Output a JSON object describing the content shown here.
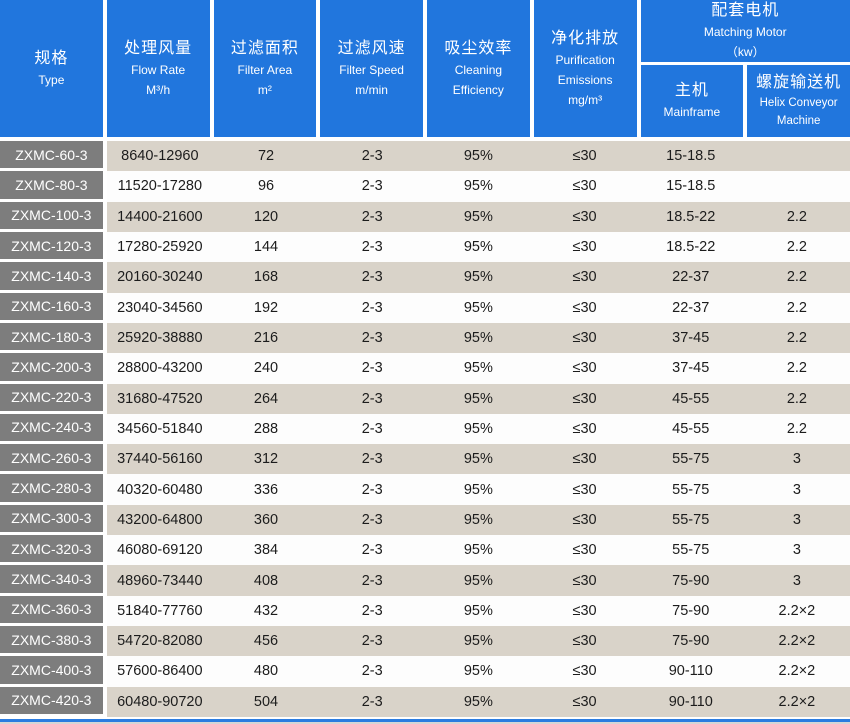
{
  "colors": {
    "header_blue": "#2176dd",
    "row_beige": "#d9d3c9",
    "row_white": "#fdfdfd",
    "type_gray": "#7d7d7d",
    "footer_blue": "#2b7ce0",
    "footer_gray": "#d6d6d6"
  },
  "header": {
    "col_type": {
      "zh": "规格",
      "en": "Type"
    },
    "col_flow": {
      "zh": "处理风量",
      "en": "Flow Rate",
      "unit": "M³/h"
    },
    "col_area": {
      "zh": "过滤面积",
      "en": "Filter Area",
      "unit": "m²"
    },
    "col_speed": {
      "zh": "过滤风速",
      "en": "Filter Speed",
      "unit": "m/min"
    },
    "col_eff": {
      "zh": "吸尘效率",
      "en_line1": "Cleaning",
      "en_line2": "Efficiency"
    },
    "col_emis": {
      "zh": "净化排放",
      "en_line1": "Purification",
      "en_line2": "Emissions",
      "unit": "mg/m³"
    },
    "motor_group": {
      "zh": "配套电机",
      "en": "Matching Motor",
      "unit": "（kw）"
    },
    "col_mainframe": {
      "zh": "主机",
      "en": "Mainframe"
    },
    "col_helix": {
      "zh": "螺旋输送机",
      "en_line1": "Helix Conveyor",
      "en_line2": "Machine"
    }
  },
  "rows": [
    {
      "model": "ZXMC-60-3",
      "flow": "8640-12960",
      "area": "72",
      "speed": "2-3",
      "eff": "95%",
      "emis": "≤30",
      "main": "15-18.5",
      "helix": ""
    },
    {
      "model": "ZXMC-80-3",
      "flow": "11520-17280",
      "area": "96",
      "speed": "2-3",
      "eff": "95%",
      "emis": "≤30",
      "main": "15-18.5",
      "helix": ""
    },
    {
      "model": "ZXMC-100-3",
      "flow": "14400-21600",
      "area": "120",
      "speed": "2-3",
      "eff": "95%",
      "emis": "≤30",
      "main": "18.5-22",
      "helix": "2.2"
    },
    {
      "model": "ZXMC-120-3",
      "flow": "17280-25920",
      "area": "144",
      "speed": "2-3",
      "eff": "95%",
      "emis": "≤30",
      "main": "18.5-22",
      "helix": "2.2"
    },
    {
      "model": "ZXMC-140-3",
      "flow": "20160-30240",
      "area": "168",
      "speed": "2-3",
      "eff": "95%",
      "emis": "≤30",
      "main": "22-37",
      "helix": "2.2"
    },
    {
      "model": "ZXMC-160-3",
      "flow": "23040-34560",
      "area": "192",
      "speed": "2-3",
      "eff": "95%",
      "emis": "≤30",
      "main": "22-37",
      "helix": "2.2"
    },
    {
      "model": "ZXMC-180-3",
      "flow": "25920-38880",
      "area": "216",
      "speed": "2-3",
      "eff": "95%",
      "emis": "≤30",
      "main": "37-45",
      "helix": "2.2"
    },
    {
      "model": "ZXMC-200-3",
      "flow": "28800-43200",
      "area": "240",
      "speed": "2-3",
      "eff": "95%",
      "emis": "≤30",
      "main": "37-45",
      "helix": "2.2"
    },
    {
      "model": "ZXMC-220-3",
      "flow": "31680-47520",
      "area": "264",
      "speed": "2-3",
      "eff": "95%",
      "emis": "≤30",
      "main": "45-55",
      "helix": "2.2"
    },
    {
      "model": "ZXMC-240-3",
      "flow": "34560-51840",
      "area": "288",
      "speed": "2-3",
      "eff": "95%",
      "emis": "≤30",
      "main": "45-55",
      "helix": "2.2"
    },
    {
      "model": "ZXMC-260-3",
      "flow": "37440-56160",
      "area": "312",
      "speed": "2-3",
      "eff": "95%",
      "emis": "≤30",
      "main": "55-75",
      "helix": "3"
    },
    {
      "model": "ZXMC-280-3",
      "flow": "40320-60480",
      "area": "336",
      "speed": "2-3",
      "eff": "95%",
      "emis": "≤30",
      "main": "55-75",
      "helix": "3"
    },
    {
      "model": "ZXMC-300-3",
      "flow": "43200-64800",
      "area": "360",
      "speed": "2-3",
      "eff": "95%",
      "emis": "≤30",
      "main": "55-75",
      "helix": "3"
    },
    {
      "model": "ZXMC-320-3",
      "flow": "46080-69120",
      "area": "384",
      "speed": "2-3",
      "eff": "95%",
      "emis": "≤30",
      "main": "55-75",
      "helix": "3"
    },
    {
      "model": "ZXMC-340-3",
      "flow": "48960-73440",
      "area": "408",
      "speed": "2-3",
      "eff": "95%",
      "emis": "≤30",
      "main": "75-90",
      "helix": "3"
    },
    {
      "model": "ZXMC-360-3",
      "flow": "51840-77760",
      "area": "432",
      "speed": "2-3",
      "eff": "95%",
      "emis": "≤30",
      "main": "75-90",
      "helix": "2.2×2"
    },
    {
      "model": "ZXMC-380-3",
      "flow": "54720-82080",
      "area": "456",
      "speed": "2-3",
      "eff": "95%",
      "emis": "≤30",
      "main": "75-90",
      "helix": "2.2×2"
    },
    {
      "model": "ZXMC-400-3",
      "flow": "57600-86400",
      "area": "480",
      "speed": "2-3",
      "eff": "95%",
      "emis": "≤30",
      "main": "90-110",
      "helix": "2.2×2"
    },
    {
      "model": "ZXMC-420-3",
      "flow": "60480-90720",
      "area": "504",
      "speed": "2-3",
      "eff": "95%",
      "emis": "≤30",
      "main": "90-110",
      "helix": "2.2×2"
    }
  ]
}
